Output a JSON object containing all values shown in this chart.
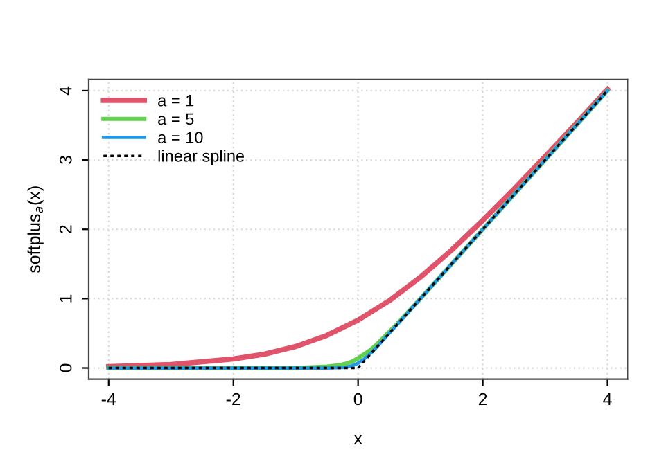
{
  "chart_data": {
    "type": "line",
    "xlabel": "x",
    "ylabel": "softplus$_{a}$(x)",
    "xlim": [
      -4.32,
      4.32
    ],
    "ylim": [
      -0.16,
      4.16
    ],
    "xticks": [
      -4,
      -2,
      0,
      2,
      4
    ],
    "yticks": [
      0,
      1,
      2,
      3,
      4
    ],
    "grid": true,
    "legend": "top left",
    "marker": "none",
    "series": [
      {
        "name": "a = 1",
        "color": "#df536b",
        "line_style": "solid",
        "x": [
          -4,
          -3,
          -2,
          -1.5,
          -1,
          -0.5,
          0,
          0.5,
          1,
          1.5,
          2,
          2.5,
          3,
          3.5,
          4
        ],
        "values": [
          0.02,
          0.05,
          0.13,
          0.2,
          0.31,
          0.47,
          0.69,
          0.97,
          1.31,
          1.7,
          2.13,
          2.58,
          3.05,
          3.53,
          4.02
        ]
      },
      {
        "name": "a = 5",
        "color": "#61d04f",
        "line_style": "solid",
        "x": [
          -4,
          -1,
          -0.5,
          -0.3,
          -0.2,
          -0.1,
          0,
          0.1,
          0.2,
          0.3,
          0.4,
          0.6,
          1,
          2,
          4
        ],
        "values": [
          0,
          0,
          0.02,
          0.04,
          0.06,
          0.09,
          0.14,
          0.2,
          0.26,
          0.34,
          0.43,
          0.61,
          1.0,
          2.0,
          4.0
        ]
      },
      {
        "name": "a = 10",
        "color": "#2297e6",
        "line_style": "solid",
        "x": [
          -4,
          -0.5,
          -0.2,
          -0.1,
          0,
          0.1,
          0.2,
          0.3,
          0.5,
          1,
          2,
          4
        ],
        "values": [
          0,
          0,
          0.01,
          0.03,
          0.07,
          0.13,
          0.21,
          0.3,
          0.5,
          1,
          2,
          4
        ]
      },
      {
        "name": "linear spline",
        "color": "#000000",
        "line_style": "dotted",
        "x": [
          -4,
          0,
          4
        ],
        "values": [
          0,
          0,
          4
        ]
      }
    ]
  }
}
